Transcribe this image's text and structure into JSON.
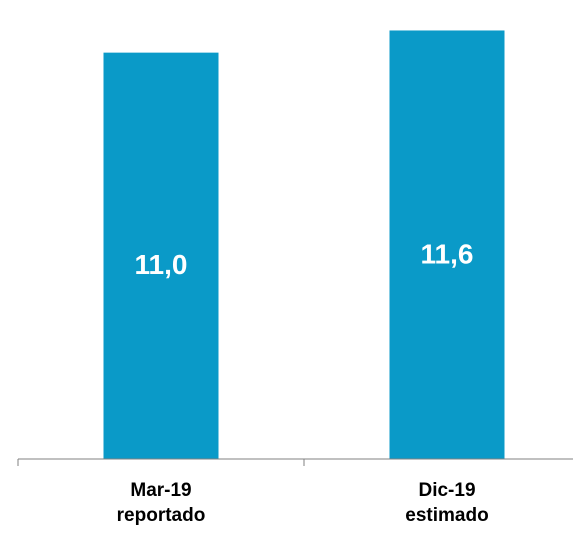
{
  "chart_data": {
    "type": "bar",
    "title": "",
    "xlabel": "",
    "ylabel": "",
    "categories": [
      [
        "Mar-19",
        "reportado"
      ],
      [
        "Dic-19",
        "estimado"
      ]
    ],
    "values": [
      11.0,
      11.6
    ],
    "data_labels": [
      "11,0",
      "11,6"
    ],
    "ylim": [
      0,
      12.1
    ],
    "grid": false,
    "legend": "none",
    "colors": {
      "bar": "#0A9AC8",
      "data_label": "#FFFFFF",
      "axis": "#808080",
      "tick_label": "#000000"
    }
  }
}
